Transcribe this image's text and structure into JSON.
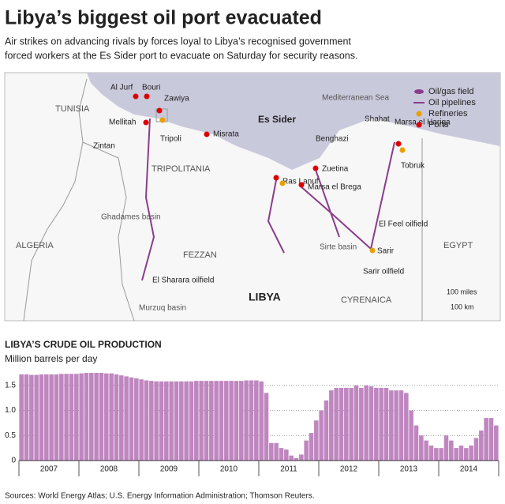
{
  "header": {
    "title": "Libya’s biggest oil port evacuated",
    "subtitle": [
      "Air strikes on advancing rivals by forces loyal to Libya’s recognised government",
      "forced workers at the Es Sider port to evacuate on Saturday for security reasons."
    ]
  },
  "map": {
    "labels": [
      "TUNISIA",
      "Al Jurf",
      "Bouri",
      "Zawiya",
      "Mellitah",
      "Tripoli",
      "Misrata",
      "Zintan",
      "TRIPOLITANIA",
      "Ghadames basin",
      "ALGERIA",
      "FEZZAN",
      "El Sharara oilfield",
      "Murzuq basin",
      "LIBYA",
      "Es Sider",
      "Ras Lanuf",
      "Mediterranean Sea",
      "Shahat",
      "Benghazi",
      "Zuetina",
      "Marsa el Brega",
      "Marsa el Hariga",
      "Tobruk",
      "El Feel oilfield",
      "Sirte basin",
      "Sarir",
      "Sarir oilfield",
      "CYRENAICA",
      "EGYPT",
      "100 miles",
      "100 km"
    ],
    "legend": [
      "Oil/gas field",
      "Oil pipelines",
      "Refineries",
      "Ports"
    ]
  },
  "chart_data": {
    "type": "bar",
    "title": "LIBYA’S CRUDE OIL PRODUCTION",
    "subtitle": "Million barrels per day",
    "groups": [
      "2007",
      "2008",
      "2009",
      "2010",
      "2011",
      "2012",
      "2013",
      "2014"
    ],
    "values": [
      1.72,
      1.72,
      1.71,
      1.71,
      1.72,
      1.72,
      1.72,
      1.72,
      1.73,
      1.73,
      1.73,
      1.73,
      1.74,
      1.75,
      1.75,
      1.75,
      1.75,
      1.74,
      1.74,
      1.72,
      1.7,
      1.68,
      1.66,
      1.64,
      1.62,
      1.6,
      1.59,
      1.58,
      1.58,
      1.58,
      1.58,
      1.58,
      1.58,
      1.58,
      1.58,
      1.59,
      1.59,
      1.59,
      1.59,
      1.59,
      1.59,
      1.59,
      1.59,
      1.59,
      1.59,
      1.6,
      1.6,
      1.6,
      1.58,
      1.35,
      0.35,
      0.35,
      0.25,
      0.22,
      0.1,
      0.05,
      0.12,
      0.4,
      0.55,
      0.8,
      1.0,
      1.2,
      1.4,
      1.45,
      1.45,
      1.45,
      1.45,
      1.5,
      1.45,
      1.5,
      1.48,
      1.45,
      1.45,
      1.45,
      1.4,
      1.4,
      1.4,
      1.35,
      1.0,
      0.7,
      0.5,
      0.4,
      0.3,
      0.25,
      0.25,
      0.5,
      0.4,
      0.25,
      0.3,
      0.25,
      0.3,
      0.45,
      0.6,
      0.85,
      0.85,
      0.7
    ],
    "color": "#bf86bf",
    "ylim": [
      0,
      1.75
    ],
    "yticks": [
      0,
      0.5,
      {
        "value": 1,
        "label": "1.0"
      },
      1.5
    ],
    "grid": true,
    "source": "Sources: World Energy Atlas; U.S. Energy Information Administration; Thomson Reuters."
  }
}
